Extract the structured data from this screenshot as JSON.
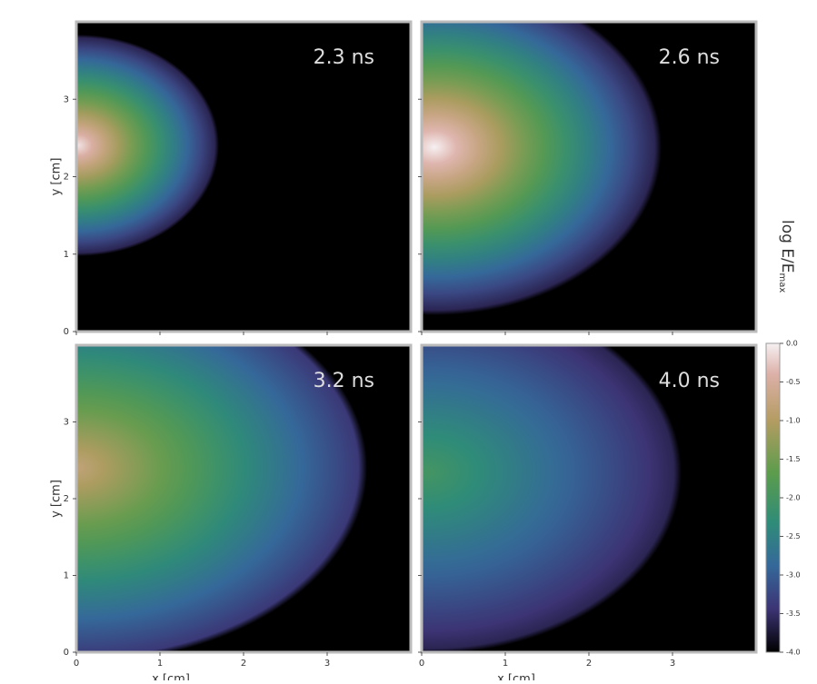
{
  "chart_data": [
    {
      "type": "heatmap",
      "annotation": "2.3 ns",
      "xlim": [
        0,
        4
      ],
      "ylim": [
        0,
        4
      ],
      "xticks": [
        0,
        1,
        2,
        3
      ],
      "yticks": [
        0,
        1,
        2,
        3
      ],
      "ylabel": "y [cm]",
      "xtick_labels": false,
      "ytick_labels": true
    },
    {
      "type": "heatmap",
      "annotation": "2.6 ns",
      "xlim": [
        0,
        4
      ],
      "ylim": [
        0,
        4
      ],
      "xticks": [
        0,
        1,
        2,
        3
      ],
      "yticks": [
        0,
        1,
        2,
        3
      ],
      "xtick_labels": false,
      "ytick_labels": false
    },
    {
      "type": "heatmap",
      "annotation": "3.2 ns",
      "xlim": [
        0,
        4
      ],
      "ylim": [
        0,
        4
      ],
      "xticks": [
        0,
        1,
        2,
        3
      ],
      "yticks": [
        0,
        1,
        2,
        3
      ],
      "ylabel": "y [cm]",
      "xlabel": "x [cm]",
      "xtick_labels": true,
      "ytick_labels": true
    },
    {
      "type": "heatmap",
      "annotation": "4.0 ns",
      "xlim": [
        0,
        4
      ],
      "ylim": [
        0,
        4
      ],
      "xticks": [
        0,
        1,
        2,
        3
      ],
      "yticks": [
        0,
        1,
        2,
        3
      ],
      "xlabel": "x [cm]",
      "xtick_labels": true,
      "ytick_labels": false
    },
    {
      "type": "colorbar",
      "label": "log E/E",
      "label_sub": "max",
      "lim": [
        -4,
        0
      ],
      "ticks": [
        {
          "value": 0,
          "label": "0.0"
        },
        -0.5,
        {
          "value": -1,
          "label": "-1.0"
        },
        -1.5,
        {
          "value": -2,
          "label": "-2.0"
        },
        -2.5,
        {
          "value": -3,
          "label": "-3.0"
        },
        -3.5,
        {
          "value": -4,
          "label": "-4.0"
        }
      ]
    }
  ]
}
